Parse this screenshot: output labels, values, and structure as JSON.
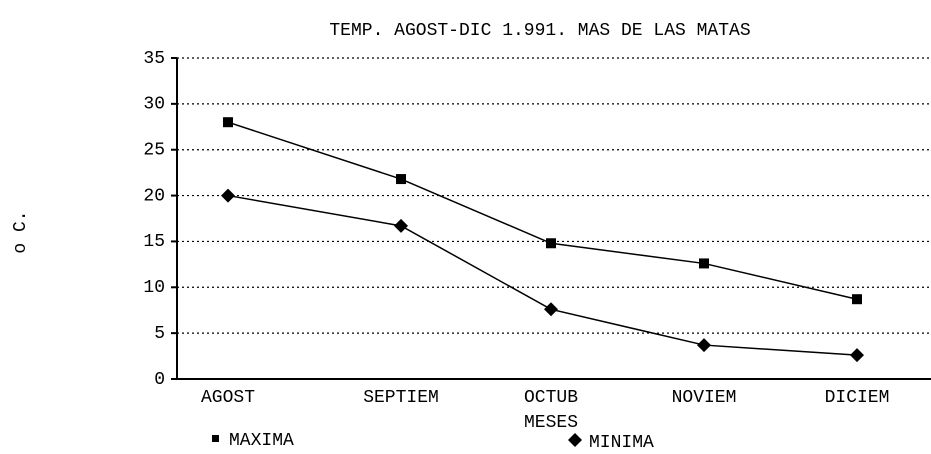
{
  "chart_data": {
    "type": "line",
    "title": "TEMP. AGOST-DIC 1.991. MAS DE LAS MATAS",
    "x_label": "MESES",
    "y_label": "o C.",
    "categories": [
      "AGOST",
      "SEPTIEM",
      "OCTUB",
      "NOVIEM",
      "DICIEM"
    ],
    "series": [
      {
        "name": "MAXIMA",
        "color": "#000000",
        "marker": "square",
        "values": [
          28,
          21.8,
          14.8,
          12.6,
          8.7
        ]
      },
      {
        "name": "MINIMA",
        "color": "#000000",
        "marker": "diamond",
        "values": [
          20,
          16.7,
          7.6,
          3.7,
          2.6
        ]
      }
    ],
    "ylim": [
      0,
      35
    ],
    "yticks": [
      0,
      5,
      10,
      15,
      20,
      25,
      30,
      35
    ],
    "grid": true
  }
}
